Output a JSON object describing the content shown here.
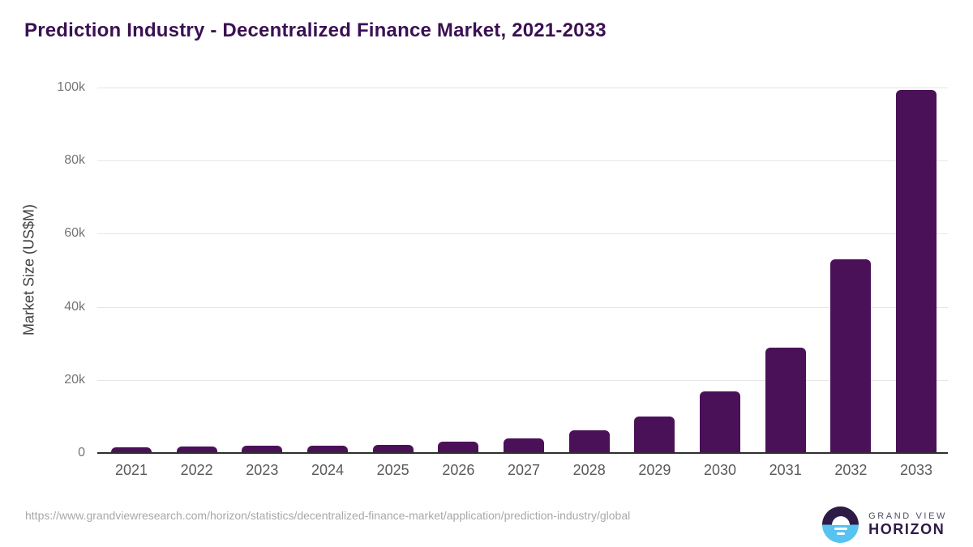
{
  "title": "Prediction Industry - Decentralized Finance Market, 2021-2033",
  "chart_data": {
    "type": "bar",
    "title": "Prediction Industry - Decentralized Finance Market, 2021-2033",
    "categories": [
      "2021",
      "2022",
      "2023",
      "2024",
      "2025",
      "2026",
      "2027",
      "2028",
      "2029",
      "2030",
      "2031",
      "2032",
      "2033"
    ],
    "values": [
      1500,
      1700,
      1900,
      2100,
      2300,
      3100,
      4100,
      6200,
      9900,
      16800,
      28900,
      53000,
      99300
    ],
    "xlabel": "",
    "ylabel": "Market Size (US$M)",
    "ylim": [
      0,
      100000
    ],
    "yticks": [
      {
        "value": 0,
        "label": "0"
      },
      {
        "value": 20000,
        "label": "20k"
      },
      {
        "value": 40000,
        "label": "40k"
      },
      {
        "value": 60000,
        "label": "60k"
      },
      {
        "value": 80000,
        "label": "80k"
      },
      {
        "value": 100000,
        "label": "100k"
      }
    ],
    "grid": true,
    "legend": "none",
    "bar_color": "#4B1158"
  },
  "colors": {
    "title": "#3B1053",
    "bar": "#4B1158",
    "gridline": "#e6e6e6",
    "axis_line": "#2e2e2e",
    "tick_label": "#757575",
    "year_label": "#58595b",
    "url_text": "#a8a8a8",
    "logo_navy": "#2E1A47",
    "logo_blue": "#56C3F0"
  },
  "footer": {
    "source_url": "https://www.grandviewresearch.com/horizon/statistics/decentralized-finance-market/application/prediction-industry/global",
    "logo": {
      "line1": "GRAND VIEW",
      "line2": "HORIZON"
    }
  }
}
